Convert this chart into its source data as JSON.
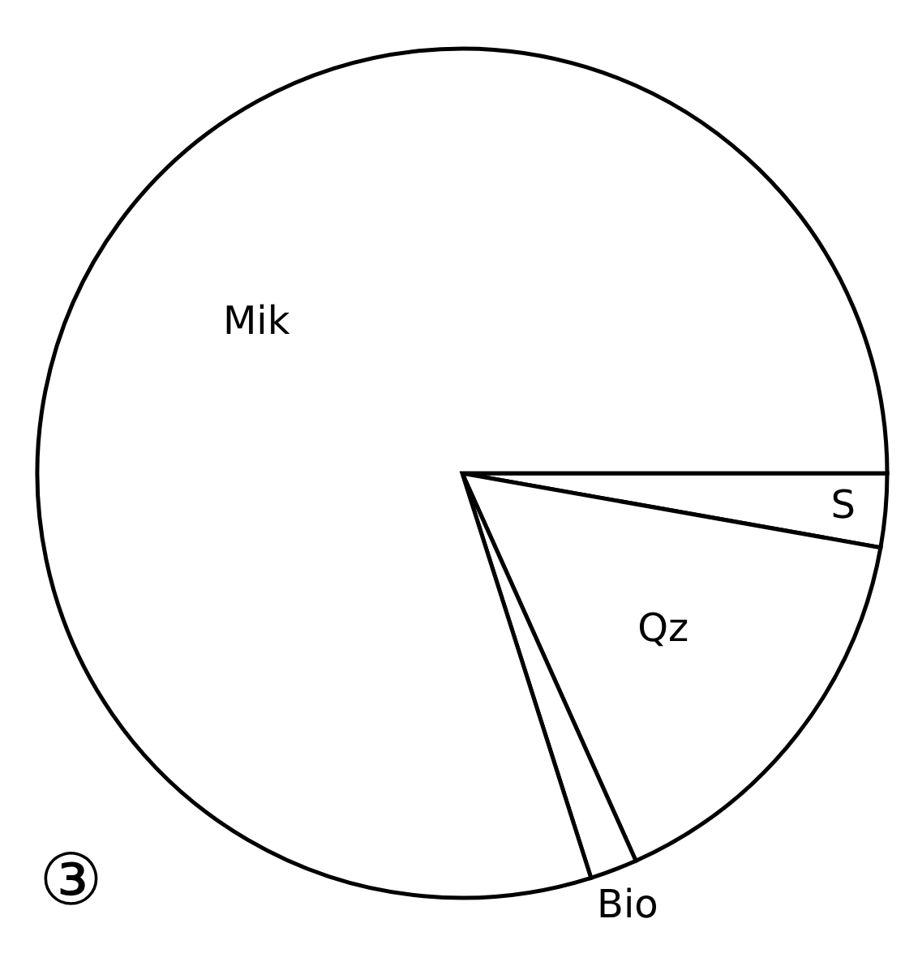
{
  "chart_data": {
    "type": "pie",
    "categories": [
      "S",
      "Qz",
      "Bio",
      "Mik"
    ],
    "values": [
      2.8,
      15.5,
      1.8,
      79.9
    ],
    "colors": [
      "#ffffff",
      "#ffffff",
      "#ffffff",
      "#ffffff"
    ],
    "annotations": [
      "③"
    ]
  }
}
